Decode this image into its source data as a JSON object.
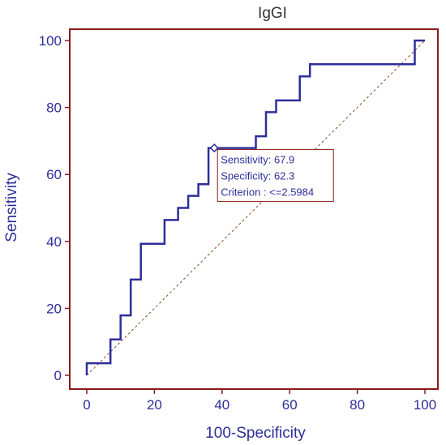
{
  "colors": {
    "curve": "#2e2e9a",
    "frame": "#8b1a1a",
    "text": "#2e2e9a",
    "title": "#333333",
    "diagonal": "#8b4c2a",
    "callout_border": "#8b1a1a",
    "callout_text": "#2e2e9a"
  },
  "chart_data": {
    "type": "line",
    "title": "IgGI",
    "xlabel": "100-Specificity",
    "ylabel": "Sensitivity",
    "xlim": [
      0,
      100
    ],
    "ylim": [
      0,
      100
    ],
    "x_ticks": [
      0,
      20,
      40,
      60,
      80,
      100
    ],
    "y_ticks": [
      0,
      20,
      40,
      60,
      80,
      100
    ],
    "grid": false,
    "series": [
      {
        "x": [
          0,
          0,
          7,
          7,
          10,
          10,
          13,
          13,
          16,
          16,
          23,
          23,
          27,
          27,
          30,
          30,
          33,
          33,
          36,
          36,
          40,
          40,
          47,
          47,
          50,
          50,
          53,
          53,
          56,
          56,
          63,
          63,
          66,
          66,
          97,
          97,
          100
        ],
        "y": [
          0,
          3.6,
          3.6,
          10.7,
          10.7,
          17.9,
          17.9,
          28.6,
          28.6,
          39.3,
          39.3,
          46.4,
          46.4,
          50,
          50,
          53.6,
          53.6,
          57.1,
          57.1,
          67.9,
          67.9,
          67.9,
          67.9,
          67.9,
          67.9,
          71.4,
          71.4,
          78.6,
          78.6,
          82.1,
          82.1,
          89.3,
          89.3,
          92.9,
          92.9,
          100,
          100
        ]
      }
    ],
    "reference_line": {
      "x": [
        0,
        100
      ],
      "y": [
        0,
        100
      ]
    },
    "highlight_point": {
      "x": 37.7,
      "y": 67.9
    },
    "callout": {
      "lines": [
        "Sensitivity: 67.9",
        "Specificity: 62.3",
        "Criterion : <=2.5984"
      ]
    }
  }
}
